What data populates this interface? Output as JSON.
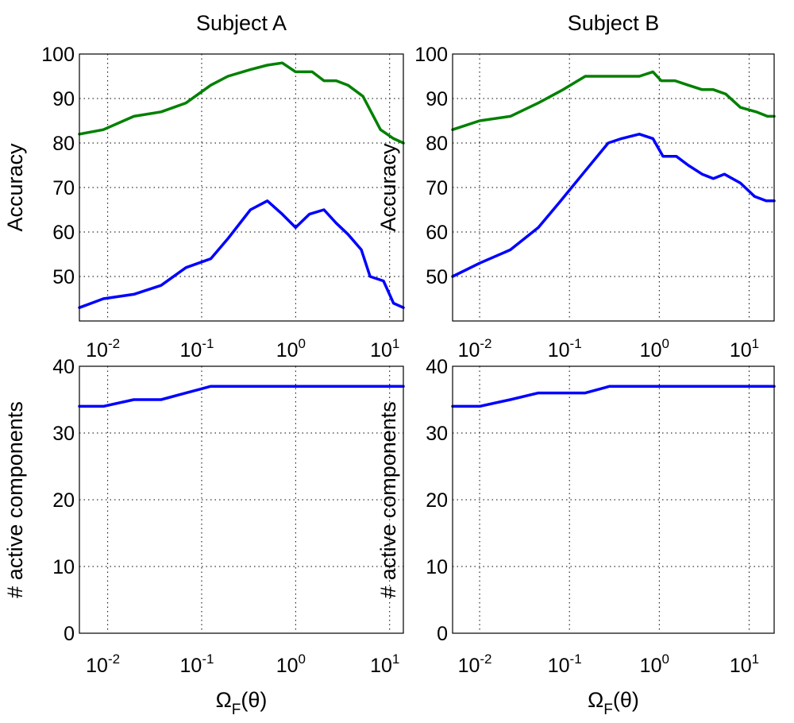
{
  "chart_data": [
    {
      "type": "line",
      "title": "Subject A",
      "xlabel": "",
      "ylabel": "Accuracy",
      "xscale": "log",
      "xlim": [
        0.005,
        14
      ],
      "ylim": [
        40,
        100
      ],
      "xticks": [
        0.01,
        0.1,
        1,
        10
      ],
      "xtick_labels": [
        {
          "base": "10",
          "exp": "-2"
        },
        {
          "base": "10",
          "exp": "-1"
        },
        {
          "base": "10",
          "exp": "0"
        },
        {
          "base": "10",
          "exp": "1"
        }
      ],
      "xtick_position": "top",
      "yticks": [
        50,
        60,
        70,
        80,
        90,
        100
      ],
      "ytick_labels": [
        "50",
        "60",
        "70",
        "80",
        "90",
        "100"
      ],
      "grid": true,
      "series": [
        {
          "color": "#008000",
          "x": [
            0.005,
            0.009,
            0.019,
            0.037,
            0.068,
            0.125,
            0.19,
            0.33,
            0.5,
            0.72,
            1.0,
            1.5,
            2.0,
            2.7,
            3.6,
            5.2,
            8.0,
            11.0,
            14.0
          ],
          "y": [
            82,
            83,
            86,
            87,
            89,
            93,
            95,
            96.5,
            97.5,
            98,
            96,
            96,
            94,
            94,
            93,
            90.5,
            83,
            81,
            80
          ]
        },
        {
          "color": "#0000ff",
          "x": [
            0.005,
            0.009,
            0.019,
            0.037,
            0.068,
            0.125,
            0.19,
            0.33,
            0.5,
            0.72,
            1.0,
            1.4,
            2.0,
            2.7,
            3.6,
            5.0,
            6.2,
            8.6,
            11.0,
            14.0
          ],
          "y": [
            43,
            45,
            46,
            48,
            52,
            54,
            58.5,
            65,
            67,
            64,
            61,
            64,
            65,
            62,
            59.5,
            56,
            50,
            49,
            44,
            43
          ]
        }
      ]
    },
    {
      "type": "line",
      "title": "Subject B",
      "xlabel": "",
      "ylabel": "Accuracy",
      "xscale": "log",
      "xlim": [
        0.005,
        19
      ],
      "ylim": [
        40,
        100
      ],
      "xticks": [
        0.01,
        0.1,
        1,
        10
      ],
      "xtick_labels": [
        {
          "base": "10",
          "exp": "-2"
        },
        {
          "base": "10",
          "exp": "-1"
        },
        {
          "base": "10",
          "exp": "0"
        },
        {
          "base": "10",
          "exp": "1"
        }
      ],
      "xtick_position": "top",
      "yticks": [
        50,
        60,
        70,
        80,
        90,
        100
      ],
      "ytick_labels": [
        "50",
        "60",
        "70",
        "80",
        "90",
        "100"
      ],
      "grid": true,
      "series": [
        {
          "color": "#008000",
          "x": [
            0.005,
            0.01,
            0.022,
            0.045,
            0.085,
            0.15,
            0.28,
            0.45,
            0.6,
            0.85,
            1.05,
            1.5,
            2.1,
            3.0,
            4.0,
            5.5,
            8.0,
            12.0,
            16.0,
            19.0
          ],
          "y": [
            83,
            85,
            86,
            89,
            92,
            95,
            95,
            95,
            95,
            96,
            94,
            94,
            93,
            92,
            92,
            91,
            88,
            87,
            86,
            86
          ]
        },
        {
          "color": "#0000ff",
          "x": [
            0.005,
            0.01,
            0.022,
            0.045,
            0.08,
            0.14,
            0.27,
            0.38,
            0.6,
            0.85,
            1.1,
            1.55,
            2.1,
            3.0,
            4.0,
            5.3,
            8.0,
            11.5,
            15.5,
            19.0
          ],
          "y": [
            50,
            53,
            56,
            61,
            67,
            73,
            80,
            81,
            82,
            81,
            77,
            77,
            75,
            73,
            72,
            73,
            71,
            68,
            67,
            67
          ]
        }
      ]
    },
    {
      "type": "line",
      "title": "",
      "xlabel": {
        "base": "Ω",
        "sub": "F",
        "rest": "(θ)"
      },
      "ylabel": "# active components",
      "xscale": "log",
      "xlim": [
        0.005,
        14
      ],
      "ylim": [
        0,
        40
      ],
      "xticks": [
        0.01,
        0.1,
        1,
        10
      ],
      "xtick_labels": [
        {
          "base": "10",
          "exp": "-2"
        },
        {
          "base": "10",
          "exp": "-1"
        },
        {
          "base": "10",
          "exp": "0"
        },
        {
          "base": "10",
          "exp": "1"
        }
      ],
      "xtick_position": "bottom",
      "yticks": [
        0,
        10,
        20,
        30,
        40
      ],
      "ytick_labels": [
        "0",
        "10",
        "20",
        "30",
        "40"
      ],
      "grid": true,
      "series": [
        {
          "color": "#0000ff",
          "x": [
            0.005,
            0.009,
            0.019,
            0.037,
            0.068,
            0.125,
            14.0
          ],
          "y": [
            34,
            34,
            35,
            35,
            36,
            37,
            37
          ]
        }
      ]
    },
    {
      "type": "line",
      "title": "",
      "xlabel": {
        "base": "Ω",
        "sub": "F",
        "rest": "(θ)"
      },
      "ylabel": "# active components",
      "xscale": "log",
      "xlim": [
        0.005,
        19
      ],
      "ylim": [
        0,
        40
      ],
      "xticks": [
        0.01,
        0.1,
        1,
        10
      ],
      "xtick_labels": [
        {
          "base": "10",
          "exp": "-2"
        },
        {
          "base": "10",
          "exp": "-1"
        },
        {
          "base": "10",
          "exp": "0"
        },
        {
          "base": "10",
          "exp": "1"
        }
      ],
      "xtick_position": "bottom",
      "yticks": [
        0,
        10,
        20,
        30,
        40
      ],
      "ytick_labels": [
        "0",
        "10",
        "20",
        "30",
        "40"
      ],
      "grid": true,
      "series": [
        {
          "color": "#0000ff",
          "x": [
            0.005,
            0.01,
            0.022,
            0.045,
            0.08,
            0.15,
            0.28,
            19.0
          ],
          "y": [
            34,
            34,
            35,
            36,
            36,
            36,
            37,
            37
          ]
        }
      ]
    }
  ]
}
